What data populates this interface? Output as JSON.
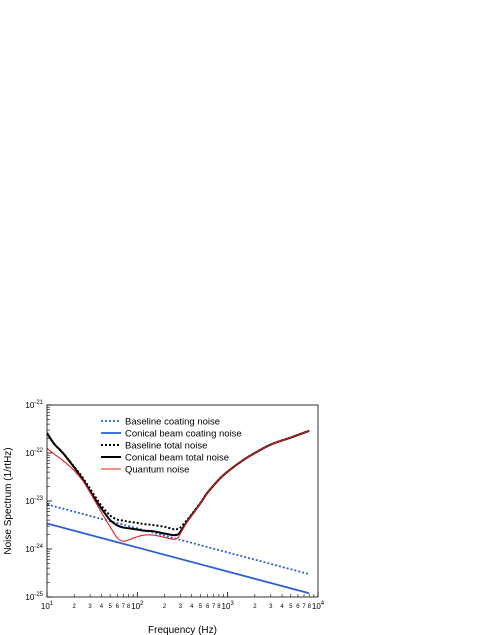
{
  "chart_data": {
    "type": "line",
    "title": "",
    "xlabel": "Frequency (Hz)",
    "ylabel": "Noise Spectrum (1/rtHz)",
    "xscale": "log",
    "yscale": "log",
    "xlim": [
      10,
      10000
    ],
    "ylim": [
      1e-25,
      1e-21
    ],
    "x_major_ticks": [
      {
        "value": 10,
        "base": "10",
        "exp": "1"
      },
      {
        "value": 100,
        "base": "10",
        "exp": "2"
      },
      {
        "value": 1000,
        "base": "10",
        "exp": "3"
      },
      {
        "value": 10000,
        "base": "10",
        "exp": "4"
      }
    ],
    "y_major_ticks": [
      {
        "value": 1e-25,
        "base": "10",
        "exp": "-25"
      },
      {
        "value": 1e-24,
        "base": "10",
        "exp": "-24"
      },
      {
        "value": 1e-23,
        "base": "10",
        "exp": "-23"
      },
      {
        "value": 1e-22,
        "base": "10",
        "exp": "-22"
      },
      {
        "value": 1e-21,
        "base": "10",
        "exp": "-21"
      }
    ],
    "x_minor_labels": [
      "2",
      "3",
      "4",
      "5",
      "6",
      "7",
      "8"
    ],
    "grid": false,
    "legend_position": "top-center",
    "series": [
      {
        "name": "Baseline coating noise",
        "color": "#2a5fd6",
        "style": "dotted",
        "x": [
          10,
          8000
        ],
        "y": [
          8.5e-24,
          3e-25
        ]
      },
      {
        "name": "Conical beam coating noise",
        "color": "#2a5fd6",
        "style": "solid",
        "x": [
          10,
          8000
        ],
        "y": [
          3.4e-24,
          1.2e-25
        ]
      },
      {
        "name": "Baseline total noise",
        "color": "#000000",
        "style": "dotted",
        "x": [
          10,
          12,
          15,
          20,
          25,
          30,
          40,
          50,
          60,
          70,
          80,
          100,
          120,
          150,
          200,
          250,
          280,
          300,
          350,
          400,
          500,
          600,
          800,
          1000,
          1500,
          2000,
          3000,
          5000,
          8000
        ],
        "y": [
          2.6e-22,
          1.55e-22,
          1e-22,
          5.2e-23,
          3e-23,
          1.8e-23,
          8e-24,
          5e-24,
          4.1e-24,
          3.9e-24,
          3.7e-24,
          3.5e-24,
          3.3e-24,
          3.15e-24,
          2.9e-24,
          2.6e-24,
          2.6e-24,
          2.8e-24,
          3.9e-24,
          5.3e-24,
          9.2e-24,
          1.5e-23,
          2.8e-23,
          4.1e-23,
          7.2e-23,
          1e-22,
          1.5e-22,
          2.1e-22,
          2.9e-22
        ]
      },
      {
        "name": "Conical beam total noise",
        "color": "#000000",
        "style": "solid",
        "x": [
          10,
          12,
          15,
          20,
          25,
          30,
          40,
          50,
          60,
          70,
          80,
          100,
          120,
          150,
          200,
          250,
          280,
          300,
          350,
          400,
          500,
          600,
          800,
          1000,
          1500,
          2000,
          3000,
          5000,
          8000
        ],
        "y": [
          2.6e-22,
          1.55e-22,
          1e-22,
          5e-23,
          2.8e-23,
          1.6e-23,
          7e-24,
          4e-24,
          3.1e-24,
          2.8e-24,
          2.7e-24,
          2.55e-24,
          2.4e-24,
          2.35e-24,
          2.1e-24,
          1.95e-24,
          2e-24,
          2.3e-24,
          3.6e-24,
          5.1e-24,
          9e-24,
          1.5e-23,
          2.8e-23,
          4.1e-23,
          7.2e-23,
          1e-22,
          1.5e-22,
          2.1e-22,
          2.9e-22
        ]
      },
      {
        "name": "Quantum noise",
        "color": "#e0201f",
        "style": "solid",
        "x": [
          10,
          12,
          15,
          20,
          25,
          30,
          40,
          50,
          60,
          70,
          80,
          100,
          120,
          150,
          200,
          250,
          280,
          300,
          350,
          400,
          500,
          600,
          800,
          1000,
          1500,
          2000,
          3000,
          5000,
          8000
        ],
        "y": [
          1.25e-22,
          9.5e-23,
          7e-23,
          4.3e-23,
          2.6e-23,
          1.5e-23,
          5.8e-24,
          2.9e-24,
          1.7e-24,
          1.45e-24,
          1.55e-24,
          1.8e-24,
          1.95e-24,
          1.95e-24,
          1.75e-24,
          1.6e-24,
          1.7e-24,
          2.1e-24,
          3.5e-24,
          5.1e-24,
          9e-24,
          1.5e-23,
          2.8e-23,
          4.1e-23,
          7.2e-23,
          1e-22,
          1.5e-22,
          2.1e-22,
          2.9e-22
        ]
      }
    ]
  }
}
